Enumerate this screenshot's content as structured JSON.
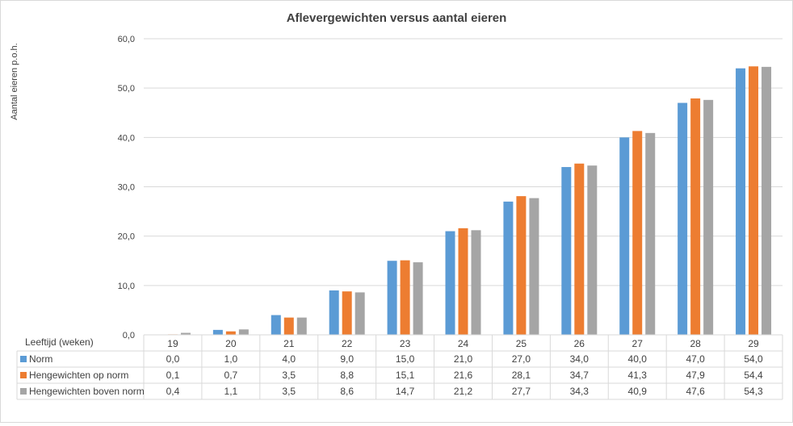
{
  "chart_data": {
    "type": "bar",
    "title": "Aflevergewichten versus aantal eieren",
    "ylabel": "Aantal eieren p.o.h.",
    "xlabel": "Leeftijd (weken)",
    "ylim": [
      0,
      60
    ],
    "yticks": [
      "0,0",
      "10,0",
      "20,0",
      "30,0",
      "40,0",
      "50,0",
      "60,0"
    ],
    "grid": true,
    "legend": "data-table",
    "categories": [
      "19",
      "20",
      "21",
      "22",
      "23",
      "24",
      "25",
      "26",
      "27",
      "28",
      "29"
    ],
    "series": [
      {
        "name": "Norm",
        "color": "#5b9bd5",
        "values": [
          0.0,
          1.0,
          4.0,
          9.0,
          15.0,
          21.0,
          27.0,
          34.0,
          40.0,
          47.0,
          54.0
        ],
        "labels": [
          "0,0",
          "1,0",
          "4,0",
          "9,0",
          "15,0",
          "21,0",
          "27,0",
          "34,0",
          "40,0",
          "47,0",
          "54,0"
        ]
      },
      {
        "name": "Hengewichten op norm",
        "color": "#ed7d31",
        "values": [
          0.1,
          0.7,
          3.5,
          8.8,
          15.1,
          21.6,
          28.1,
          34.7,
          41.3,
          47.9,
          54.4
        ],
        "labels": [
          "0,1",
          "0,7",
          "3,5",
          "8,8",
          "15,1",
          "21,6",
          "28,1",
          "34,7",
          "41,3",
          "47,9",
          "54,4"
        ]
      },
      {
        "name": "Hengewichten boven norm",
        "color": "#a5a5a5",
        "values": [
          0.4,
          1.1,
          3.5,
          8.6,
          14.7,
          21.2,
          27.7,
          34.3,
          40.9,
          47.6,
          54.3
        ],
        "labels": [
          "0,4",
          "1,1",
          "3,5",
          "8,6",
          "14,7",
          "21,2",
          "27,7",
          "34,3",
          "40,9",
          "47,6",
          "54,3"
        ]
      }
    ]
  }
}
